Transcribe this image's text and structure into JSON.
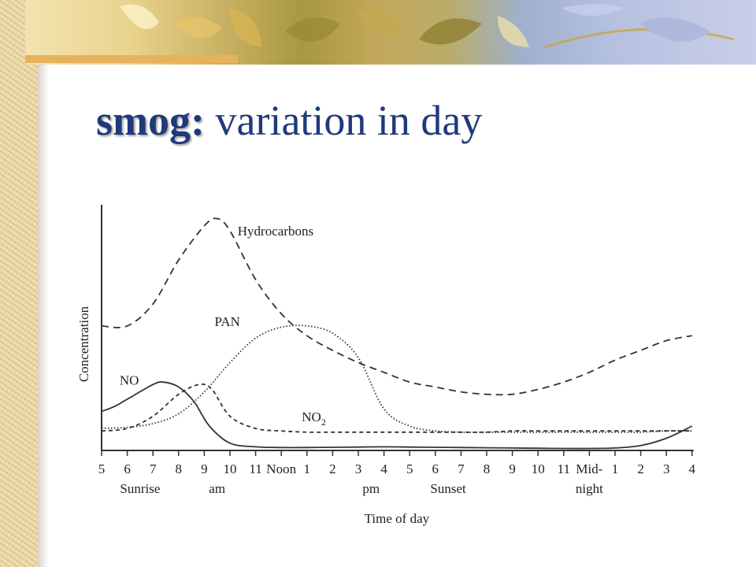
{
  "slide": {
    "title_strong": "smog:",
    "title_rest": " variation in day"
  },
  "colors": {
    "title": "#1f3a7a",
    "line": "#333333"
  },
  "chart_data": {
    "type": "line",
    "xlabel": "Time of day",
    "ylabel": "Concentration",
    "x_ticks": [
      "5",
      "6",
      "7",
      "8",
      "9",
      "10",
      "11",
      "Noon",
      "1",
      "2",
      "3",
      "4",
      "5",
      "6",
      "7",
      "8",
      "9",
      "10",
      "11",
      "Mid-",
      "1",
      "2",
      "3",
      "4"
    ],
    "x_tick_line2": {
      "19": "night"
    },
    "period_labels": [
      {
        "text": "Sunrise",
        "at": 1.5
      },
      {
        "text": "am",
        "at": 4.5
      },
      {
        "text": "pm",
        "at": 10.5
      },
      {
        "text": "Sunset",
        "at": 13.5
      }
    ],
    "ylim": [
      0,
      100
    ],
    "grid": false,
    "series": [
      {
        "name": "Hydrocarbons",
        "style": "dashed",
        "label_at": [
          5.3,
          88
        ],
        "points": [
          [
            0,
            51
          ],
          [
            1,
            51
          ],
          [
            2,
            60
          ],
          [
            3,
            78
          ],
          [
            4,
            92
          ],
          [
            4.5,
            95
          ],
          [
            5,
            90
          ],
          [
            6,
            70
          ],
          [
            7,
            56
          ],
          [
            8,
            47
          ],
          [
            9,
            41
          ],
          [
            10,
            36
          ],
          [
            11,
            32
          ],
          [
            12,
            28
          ],
          [
            13,
            26
          ],
          [
            14,
            24
          ],
          [
            15,
            23
          ],
          [
            16,
            23
          ],
          [
            17,
            25
          ],
          [
            18,
            28
          ],
          [
            19,
            32
          ],
          [
            20,
            37
          ],
          [
            21,
            41
          ],
          [
            22,
            45
          ],
          [
            23,
            47
          ]
        ]
      },
      {
        "name": "PAN",
        "style": "dotted",
        "label_at": [
          4.4,
          51
        ],
        "points": [
          [
            0,
            9
          ],
          [
            1,
            9.5
          ],
          [
            2,
            11
          ],
          [
            3,
            15
          ],
          [
            4,
            24
          ],
          [
            5,
            36
          ],
          [
            6,
            46
          ],
          [
            7,
            50.5
          ],
          [
            8,
            51
          ],
          [
            9,
            48
          ],
          [
            10,
            38
          ],
          [
            11,
            17
          ],
          [
            12,
            10
          ],
          [
            13,
            8
          ],
          [
            14,
            7.5
          ],
          [
            15,
            7.5
          ],
          [
            16,
            7.5
          ],
          [
            17,
            7.5
          ],
          [
            18,
            7.5
          ],
          [
            19,
            7.5
          ],
          [
            20,
            7.5
          ],
          [
            21,
            7.5
          ],
          [
            22,
            8
          ],
          [
            23,
            8
          ]
        ]
      },
      {
        "name": "NO2",
        "style": "dashed-short",
        "label_at": [
          7.8,
          12
        ],
        "points": [
          [
            0,
            8
          ],
          [
            1,
            9
          ],
          [
            2,
            14
          ],
          [
            3,
            23
          ],
          [
            3.8,
            27
          ],
          [
            4.3,
            25
          ],
          [
            5,
            14
          ],
          [
            6,
            9
          ],
          [
            7,
            8
          ],
          [
            8,
            7.5
          ],
          [
            9,
            7.5
          ],
          [
            10,
            7.5
          ],
          [
            11,
            7.5
          ],
          [
            12,
            7.5
          ],
          [
            13,
            7.5
          ],
          [
            14,
            7.5
          ],
          [
            15,
            7.5
          ],
          [
            16,
            8
          ],
          [
            17,
            8
          ],
          [
            18,
            8
          ],
          [
            19,
            8
          ],
          [
            20,
            8
          ],
          [
            21,
            8
          ],
          [
            22,
            8
          ],
          [
            23,
            8
          ]
        ]
      },
      {
        "name": "NO",
        "style": "solid",
        "label_at": [
          0.7,
          27
        ],
        "points": [
          [
            0,
            16
          ],
          [
            0.5,
            18
          ],
          [
            1,
            21
          ],
          [
            2,
            27
          ],
          [
            2.4,
            28
          ],
          [
            3,
            26
          ],
          [
            3.6,
            20
          ],
          [
            4.2,
            10
          ],
          [
            5,
            3
          ],
          [
            6,
            1.5
          ],
          [
            7,
            1.2
          ],
          [
            8,
            1.2
          ],
          [
            9,
            1.3
          ],
          [
            10,
            1.4
          ],
          [
            11,
            1.5
          ],
          [
            12,
            1.4
          ],
          [
            13,
            1.3
          ],
          [
            14,
            1.2
          ],
          [
            15,
            1.1
          ],
          [
            16,
            1
          ],
          [
            17,
            0.9
          ],
          [
            18,
            0.8
          ],
          [
            19,
            0.8
          ],
          [
            20,
            1
          ],
          [
            21,
            2
          ],
          [
            22,
            5
          ],
          [
            23,
            10
          ]
        ]
      }
    ]
  }
}
